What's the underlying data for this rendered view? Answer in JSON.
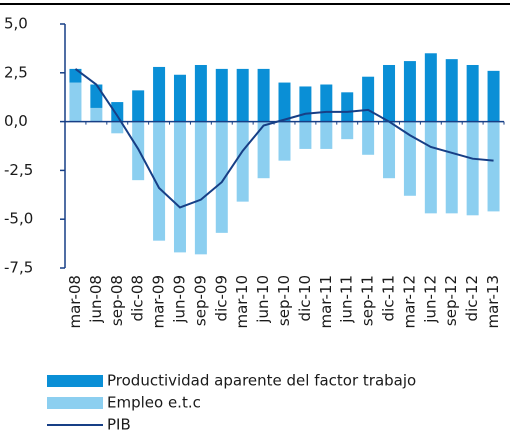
{
  "chart_data": {
    "type": "bar",
    "categories": [
      "mar-08",
      "jun-08",
      "sep-08",
      "dic-08",
      "mar-09",
      "jun-09",
      "sep-09",
      "dic-09",
      "mar-10",
      "jun-10",
      "sep-10",
      "dic-10",
      "mar-11",
      "jun-11",
      "sep-11",
      "dic-11",
      "mar-12",
      "jun-12",
      "sep-12",
      "dic-12",
      "mar-13"
    ],
    "series": [
      {
        "name": "Productividad aparente del factor trabajo",
        "type": "bar",
        "color": "#0a8fd6",
        "values": [
          0.7,
          1.2,
          1.0,
          1.6,
          2.8,
          2.4,
          2.9,
          2.7,
          2.7,
          2.7,
          2.0,
          1.8,
          1.9,
          1.5,
          2.3,
          2.9,
          3.1,
          3.5,
          3.2,
          2.9,
          2.6
        ]
      },
      {
        "name": "Empleo e.t.c",
        "type": "bar",
        "color": "#8ccff0",
        "values": [
          2.0,
          0.7,
          -0.6,
          -3.0,
          -6.1,
          -6.7,
          -6.8,
          -5.7,
          -4.1,
          -2.9,
          -2.0,
          -1.4,
          -1.4,
          -0.9,
          -1.7,
          -2.9,
          -3.8,
          -4.7,
          -4.7,
          -4.8,
          -4.6
        ]
      },
      {
        "name": "PIB",
        "type": "line",
        "color": "#173f86",
        "values": [
          2.7,
          1.9,
          0.3,
          -1.4,
          -3.4,
          -4.4,
          -4.0,
          -3.1,
          -1.5,
          -0.2,
          0.1,
          0.4,
          0.5,
          0.5,
          0.6,
          0.0,
          -0.7,
          -1.3,
          -1.6,
          -1.9,
          -2.0
        ]
      }
    ],
    "ylim": [
      -7.5,
      5.0
    ],
    "yticks": [
      {
        "value": -7.5,
        "label": "-7,5"
      },
      {
        "value": -5.0,
        "label": "-5,0"
      },
      {
        "value": -2.5,
        "label": "-2,5"
      },
      {
        "value": 0.0,
        "label": "0,0"
      },
      {
        "value": 2.5,
        "label": "2,5"
      },
      {
        "value": 5.0,
        "label": "5,0"
      }
    ]
  }
}
